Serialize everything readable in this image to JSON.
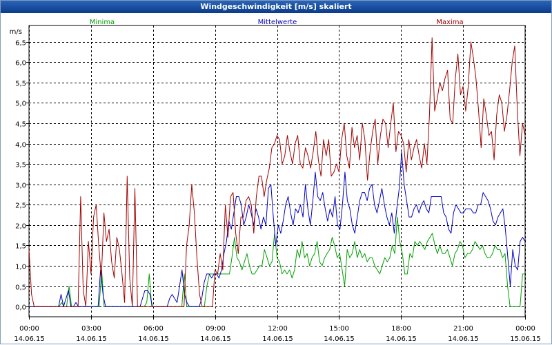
{
  "window": {
    "title": "Windgeschwindigkeit [m/s] skaliert"
  },
  "colors": {
    "minima": "#00a000",
    "mittelwerte": "#0000c0",
    "maxima": "#a00000",
    "grid": "#000000"
  },
  "chart_data": {
    "type": "line",
    "title": "Windgeschwindigkeit [m/s] skaliert",
    "ylabel": "m/s",
    "ylim": [
      -0.25,
      6.9
    ],
    "yticks": [
      0.0,
      0.5,
      1.0,
      1.5,
      2.0,
      2.5,
      3.0,
      3.5,
      4.0,
      4.5,
      5.0,
      5.5,
      6.0,
      6.5
    ],
    "ytick_labels": [
      "0,0",
      "0,5",
      "1,0",
      "1,5",
      "2,0",
      "2,5",
      "3,0",
      "3,5",
      "4,0",
      "4,5",
      "5,0",
      "5,5",
      "6,0",
      "6,5"
    ],
    "xlim": [
      0,
      24
    ],
    "xticks": [
      0,
      3,
      6,
      9,
      12,
      15,
      18,
      21,
      24
    ],
    "xtick_times": [
      "00:00",
      "03:00",
      "06:00",
      "09:00",
      "12:00",
      "15:00",
      "18:00",
      "21:00",
      "00:00"
    ],
    "xtick_dates": [
      "14.06.15",
      "14.06.15",
      "14.06.15",
      "14.06.15",
      "14.06.15",
      "14.06.15",
      "14.06.15",
      "14.06.15",
      "15.06.15"
    ],
    "x_step_hours": 0.1667,
    "series": [
      {
        "name": "Minima",
        "color": "#00a000",
        "values": [
          0,
          0,
          0,
          0,
          0,
          0,
          0,
          0,
          0,
          0,
          0,
          0,
          0,
          0.1,
          0,
          0,
          0.5,
          0,
          0,
          0,
          0,
          0,
          0,
          0,
          0,
          0,
          0,
          0,
          0,
          0.9,
          0,
          0,
          0,
          0,
          0,
          0,
          0,
          0,
          0,
          0,
          0,
          0,
          0,
          0,
          0,
          0,
          0,
          0.1,
          0.8,
          0,
          0,
          0,
          0,
          0,
          0,
          0,
          0,
          0,
          0,
          0,
          0,
          0,
          0.8,
          0,
          0,
          0,
          0,
          0,
          0,
          0,
          0,
          0.5,
          0.8,
          0.8,
          0.8,
          0.8,
          0.8,
          0.8,
          0.8,
          0.8,
          0.8,
          1.2,
          1.7,
          1.2,
          1.1,
          0.9,
          1.1,
          1.3,
          1.0,
          0.8,
          0.8,
          0.9,
          1.0,
          1.0,
          1.4,
          1.2,
          1.0,
          1.1,
          1.8,
          1.2,
          1.1,
          0.8,
          0.9,
          0.8,
          0.9,
          0.7,
          0.9,
          1.4,
          1.2,
          1.6,
          1.2,
          1.3,
          1.0,
          1.2,
          1.3,
          1.6,
          1.1,
          1.0,
          1.2,
          1.3,
          1.4,
          1.7,
          1.5,
          1.2,
          1.3,
          0.9,
          0.5,
          1.4,
          1.2,
          1.3,
          1.6,
          1.2,
          1.4,
          1.2,
          1.3,
          1.1,
          1.2,
          1.2,
          1.0,
          0.9,
          0.8,
          1.0,
          1.2,
          1.1,
          1.2,
          1.5,
          1.3,
          2.2,
          1.6,
          1.3,
          0.8,
          0.8,
          1.3,
          1.2,
          1.6,
          1.5,
          1.6,
          1.5,
          1.4,
          1.6,
          1.7,
          1.8,
          1.5,
          1.3,
          1.5,
          1.3,
          1.3,
          1.4,
          1.2,
          1.0,
          1.3,
          1.4,
          1.6,
          1.5,
          1.2,
          1.3,
          1.3,
          1.4,
          1.6,
          1.5,
          1.4,
          1.5,
          1.3,
          1.2,
          1.2,
          1.3,
          1.5,
          1.4,
          1.4,
          1.2,
          1.3,
          0.5,
          0,
          0,
          0,
          0,
          0,
          0.8,
          0.8
        ]
      },
      {
        "name": "Mittelwerte",
        "color": "#0000c0",
        "values": [
          0,
          0,
          0,
          0,
          0,
          0,
          0,
          0,
          0,
          0,
          0,
          0,
          0,
          0.3,
          0,
          0.2,
          0.4,
          0,
          0,
          0.1,
          0,
          0,
          0,
          0,
          0,
          0,
          0,
          0,
          0,
          0.9,
          0.3,
          0,
          0,
          0,
          0,
          0,
          0,
          0,
          0,
          0,
          0,
          0,
          0,
          0,
          0,
          0,
          0.2,
          0.4,
          0.4,
          0.3,
          0,
          0,
          0,
          0,
          0,
          0,
          0,
          0.2,
          0.3,
          0.2,
          0.1,
          0.5,
          0.9,
          0.3,
          0.1,
          0,
          0,
          0,
          0,
          0,
          0.2,
          0.6,
          0.8,
          0.8,
          0.7,
          0.8,
          0.8,
          0.7,
          0.9,
          1.3,
          1.6,
          2.1,
          1.9,
          2.3,
          2.7,
          2.7,
          2.5,
          2.0,
          2.2,
          2.5,
          2.3,
          2.0,
          2.4,
          2.2,
          1.9,
          2.2,
          2.0,
          2.9,
          3.0,
          2.2,
          1.5,
          2.0,
          1.8,
          2.1,
          2.5,
          2.7,
          2.3,
          2.0,
          2.4,
          2.3,
          2.5,
          2.2,
          3.0,
          2.4,
          2.0,
          2.6,
          3.3,
          2.7,
          2.6,
          2.8,
          2.4,
          2.1,
          2.4,
          2.2,
          2.7,
          2.0,
          1.9,
          2.5,
          3.3,
          2.6,
          2.4,
          2.0,
          1.8,
          2.2,
          2.6,
          2.8,
          2.8,
          2.6,
          2.9,
          3.0,
          2.5,
          2.3,
          2.6,
          2.9,
          2.5,
          2.2,
          2.0,
          2.3,
          1.8,
          2.4,
          2.9,
          3.8,
          3.0,
          2.6,
          2.2,
          2.2,
          2.4,
          2.5,
          2.3,
          2.5,
          2.6,
          2.4,
          2.3,
          2.7,
          2.7,
          2.7,
          2.7,
          2.7,
          2.3,
          2.2,
          1.9,
          1.8,
          2.3,
          2.5,
          2.4,
          2.3,
          2.3,
          2.4,
          2.4,
          2.4,
          2.3,
          2.3,
          2.5,
          2.5,
          2.8,
          2.7,
          2.6,
          2.4,
          2.1,
          2.0,
          2.2,
          2.3,
          2.4,
          1.9,
          1.2,
          0.5,
          1.4,
          1.0,
          0.9,
          1.6,
          1.7,
          1.6
        ]
      },
      {
        "name": "Maxima",
        "color": "#a00000",
        "values": [
          1.4,
          0.3,
          0,
          0,
          0,
          0,
          0,
          0,
          0,
          0,
          0,
          0,
          0,
          0,
          0,
          0,
          0,
          0,
          0,
          0,
          2.7,
          0.4,
          0,
          1.6,
          0.8,
          2.2,
          2.5,
          1.5,
          0.7,
          2.3,
          1.6,
          1.9,
          1.1,
          0.7,
          1.7,
          1.4,
          0.8,
          0.1,
          3.2,
          0.7,
          0,
          2.9,
          0,
          0,
          0,
          0,
          0,
          0,
          0,
          0,
          0,
          0,
          0,
          0,
          0,
          0,
          0,
          0,
          0,
          0,
          0,
          1.5,
          2.0,
          3.0,
          2.3,
          1.2,
          0.3,
          0,
          0,
          0,
          0,
          0,
          0.9,
          0.8,
          1.3,
          0.9,
          2.5,
          1.7,
          2.7,
          2.8,
          1.8,
          1.3,
          2.2,
          2.2,
          2.6,
          2.7,
          2.5,
          1.8,
          2.7,
          3.2,
          3.2,
          2.7,
          3.1,
          3.4,
          3.9,
          4.0,
          4.2,
          4.1,
          3.5,
          3.7,
          4.2,
          3.8,
          3.5,
          4.0,
          4.2,
          3.5,
          3.4,
          3.9,
          3.7,
          3.4,
          3.8,
          4.3,
          3.6,
          3.2,
          4.1,
          3.7,
          4.1,
          3.2,
          3.3,
          3.5,
          3.3,
          4.1,
          4.5,
          3.7,
          3.4,
          4.4,
          3.9,
          4.2,
          3.6,
          4.5,
          4.1,
          3.1,
          3.8,
          4.3,
          4.6,
          3.5,
          4.2,
          4.6,
          4.5,
          3.9,
          4.5,
          5.0,
          3.8,
          4.3,
          4.2,
          4.0,
          3.3,
          4.1,
          3.6,
          3.9,
          4.1,
          3.7,
          3.4,
          4.0,
          3.5,
          4.7,
          6.6,
          4.8,
          5.1,
          5.5,
          5.3,
          5.6,
          5.8,
          4.6,
          4.5,
          5.6,
          6.2,
          5.2,
          5.4,
          4.8,
          5.4,
          6.5,
          6.1,
          5.6,
          4.8,
          3.9,
          5.1,
          4.7,
          4.2,
          4.3,
          3.6,
          4.7,
          5.2,
          5.0,
          4.3,
          4.7,
          5.3,
          6.0,
          6.4,
          4.8,
          3.7,
          4.5,
          4.2
        ]
      }
    ],
    "legend": {
      "placement": "top",
      "entries": [
        "Minima",
        "Mittelwerte",
        "Maxima"
      ]
    }
  }
}
